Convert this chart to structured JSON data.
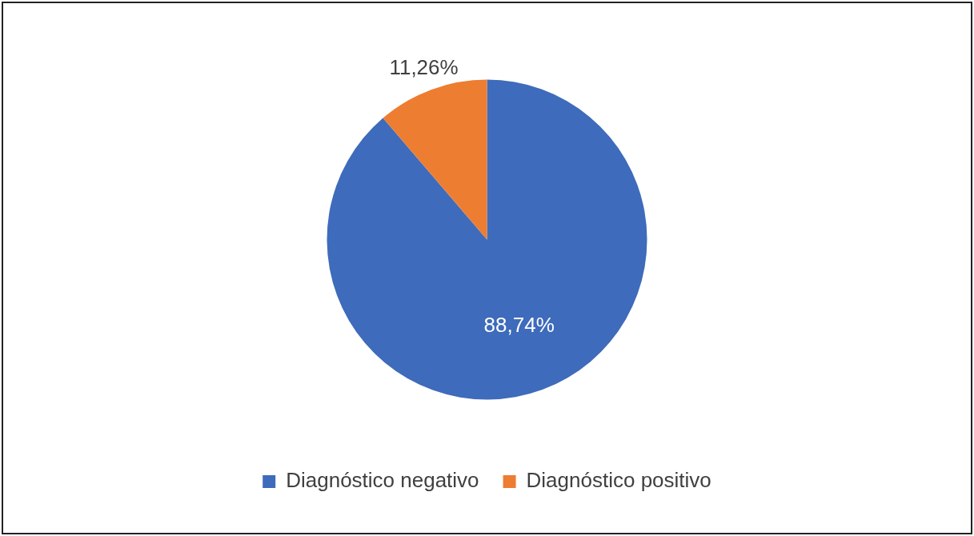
{
  "chart_data": {
    "type": "pie",
    "categories": [
      "Diagnóstico negativo",
      "Diagnóstico positivo"
    ],
    "values": [
      88.74,
      11.26
    ],
    "colors": [
      "#3e6bbb",
      "#ed7d31"
    ],
    "value_labels": [
      "88,74%",
      "11,26%"
    ],
    "legend": "bottom"
  }
}
